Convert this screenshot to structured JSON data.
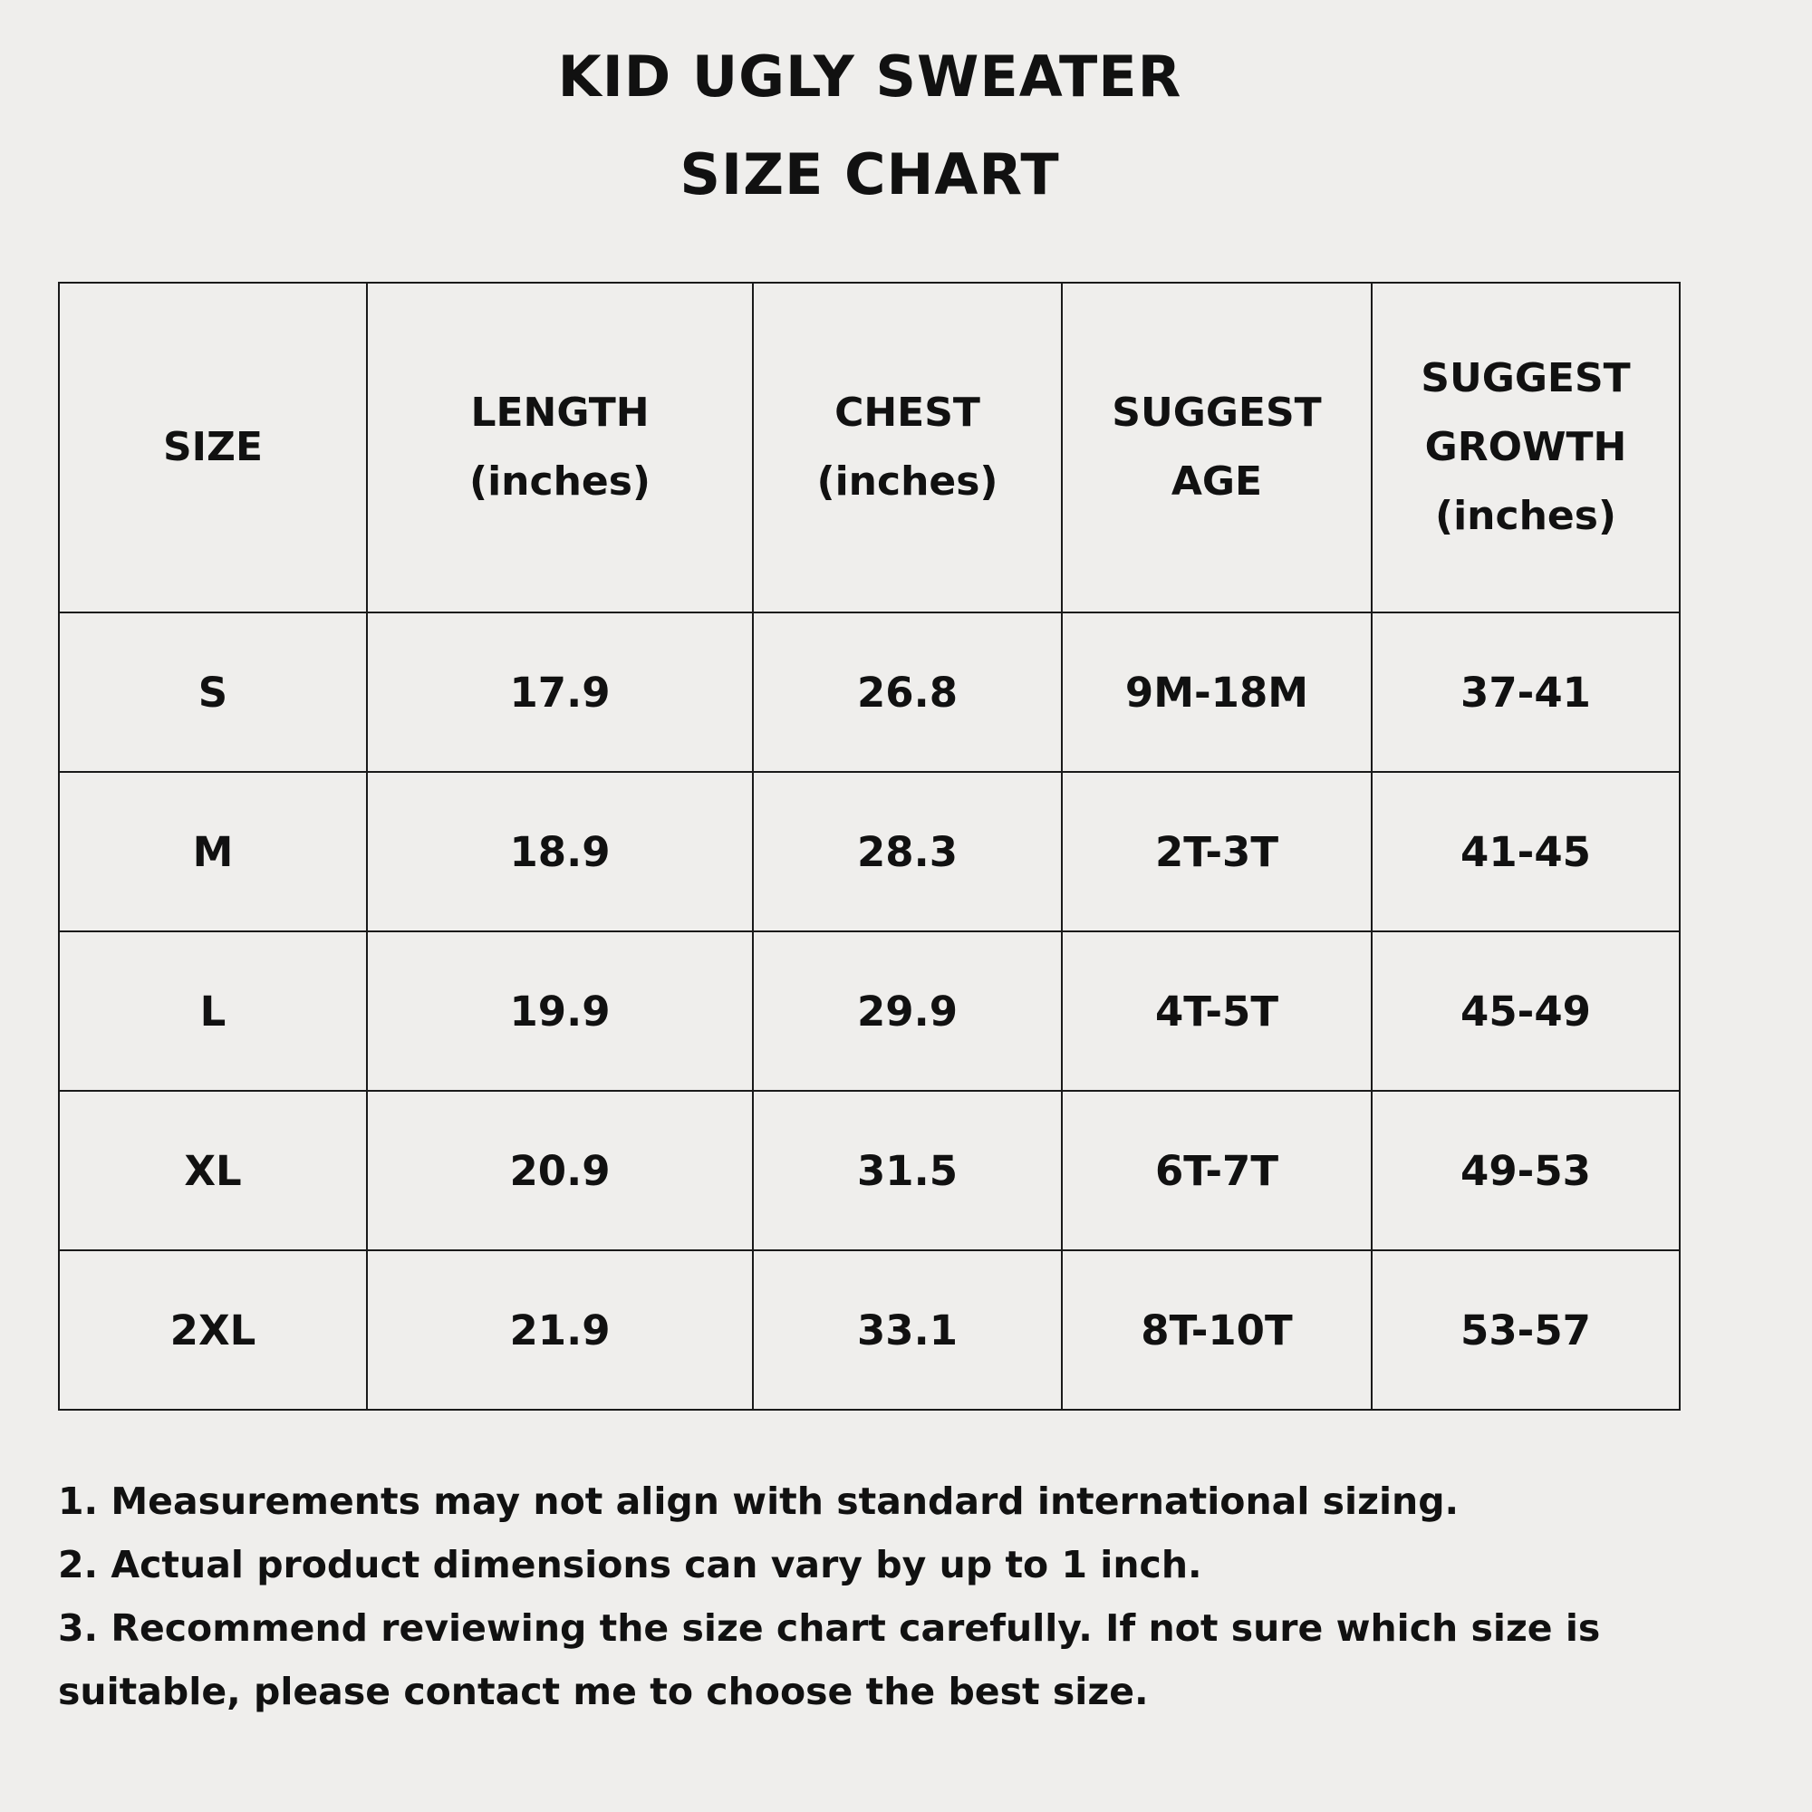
{
  "title": {
    "line1": "KID UGLY SWEATER",
    "line2": "SIZE CHART"
  },
  "table": {
    "headers": [
      [
        "SIZE"
      ],
      [
        "LENGTH",
        "(inches)"
      ],
      [
        "CHEST",
        "(inches)"
      ],
      [
        "SUGGEST",
        "AGE"
      ],
      [
        "SUGGEST",
        "GROWTH",
        "(inches)"
      ]
    ],
    "rows": [
      [
        "S",
        "17.9",
        "26.8",
        "9M-18M",
        "37-41"
      ],
      [
        "M",
        "18.9",
        "28.3",
        "2T-3T",
        "41-45"
      ],
      [
        "L",
        "19.9",
        "29.9",
        "4T-5T",
        "45-49"
      ],
      [
        "XL",
        "20.9",
        "31.5",
        "6T-7T",
        "49-53"
      ],
      [
        "2XL",
        "21.9",
        "33.1",
        "8T-10T",
        "53-57"
      ]
    ]
  },
  "notes": [
    "1. Measurements may not align with standard international sizing.",
    "2. Actual product dimensions can vary by up to 1 inch.",
    "3. Recommend reviewing the size chart carefully. If not sure which size is suitable, please contact me to choose the best size."
  ]
}
